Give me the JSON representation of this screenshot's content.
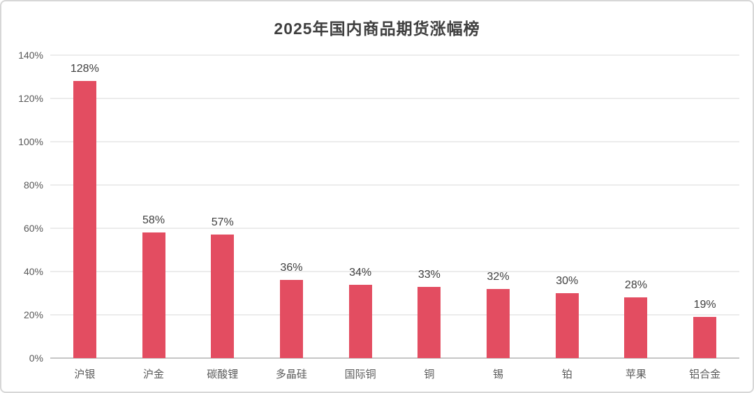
{
  "chart_data": {
    "type": "bar",
    "title": "2025年国内商品期货涨幅榜",
    "categories": [
      "沪银",
      "沪金",
      "碳酸锂",
      "多晶硅",
      "国际铜",
      "铜",
      "锡",
      "铂",
      "苹果",
      "铝合金"
    ],
    "values": [
      128,
      58,
      57,
      36,
      34,
      33,
      32,
      30,
      28,
      19
    ],
    "value_labels": [
      "128%",
      "58%",
      "57%",
      "36%",
      "34%",
      "33%",
      "32%",
      "30%",
      "28%",
      "19%"
    ],
    "y_ticks": [
      0,
      20,
      40,
      60,
      80,
      100,
      120,
      140
    ],
    "y_tick_labels": [
      "0%",
      "20%",
      "40%",
      "60%",
      "80%",
      "100%",
      "120%",
      "140%"
    ],
    "ylim": [
      0,
      140
    ],
    "xlabel": "",
    "ylabel": "",
    "grid": true,
    "legend_position": "none"
  },
  "colors": {
    "bar": "#e34d61",
    "title": "#3f3f3f",
    "axis_label": "#595959",
    "data_label": "#404040",
    "gridline": "#ececec",
    "baseline": "#c6c6c6",
    "card_border": "#d7d7d7",
    "background": "#ffffff"
  }
}
